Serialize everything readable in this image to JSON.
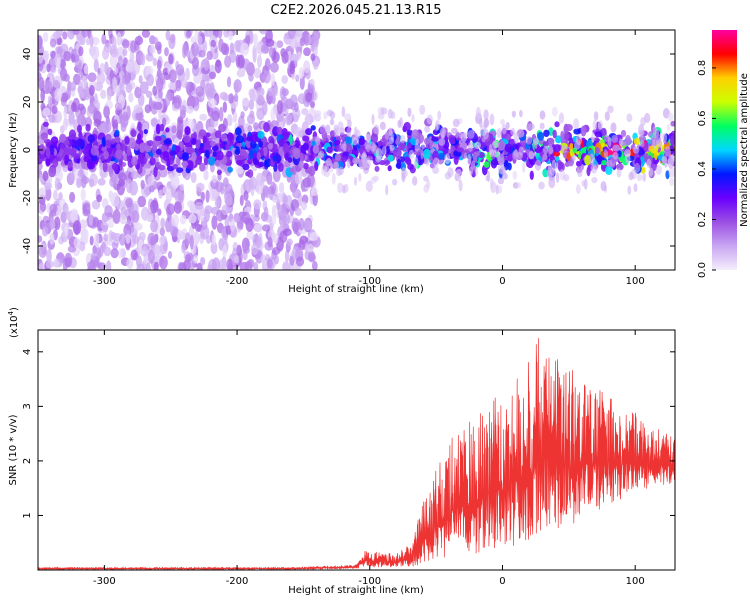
{
  "figure": {
    "title": "C2E2.2026.045.21.13.R15"
  },
  "chart_data": [
    {
      "type": "heatmap",
      "xlabel": "Height of straight line (km)",
      "ylabel": "Frequency (Hz)",
      "xlim": [
        -350,
        130
      ],
      "ylim": [
        -50,
        50
      ],
      "xticks": [
        -300,
        -200,
        -100,
        0,
        100
      ],
      "yticks": [
        -40,
        -20,
        0,
        20,
        40
      ],
      "xtick_labels": [
        "-300",
        "-200",
        "-100",
        "0",
        "100"
      ],
      "ytick_labels": [
        "-40",
        "-20",
        "0",
        "20",
        "40"
      ],
      "noise_region_x": [
        -350,
        -140
      ],
      "band_center_hz": 0,
      "band_halfwidth_hz": 5,
      "colorbar": {
        "label": "Normalized spectral amplitude",
        "range": [
          0,
          0.95
        ],
        "ticks": [
          0,
          0.2,
          0.4,
          0.6,
          0.8
        ],
        "tick_labels": [
          "0.0",
          "0.2",
          "0.4",
          "0.6",
          "0.8"
        ],
        "colors": [
          "#f4eefc",
          "#c9a6f2",
          "#9b4fe3",
          "#6a00ff",
          "#0018ff",
          "#00d8ff",
          "#00ff60",
          "#ccff00",
          "#ffd000",
          "#ff0000",
          "#ff00a0"
        ]
      }
    },
    {
      "type": "line",
      "color": "#ee3333",
      "xlabel": "Height of straight line (km)",
      "ylabel": "SNR (10 * v/v)",
      "scale_label": "(x10",
      "scale_exponent": "4",
      "scale_close": ")",
      "xlim": [
        -350,
        130
      ],
      "ylim": [
        0,
        4.4
      ],
      "xticks": [
        -300,
        -200,
        -100,
        0,
        100
      ],
      "yticks": [
        1,
        2,
        3,
        4
      ],
      "xtick_labels": [
        "-300",
        "-200",
        "-100",
        "0",
        "100"
      ],
      "ytick_labels": [
        "1",
        "2",
        "3",
        "4"
      ],
      "envelope": {
        "x": [
          -350,
          -160,
          -110,
          -105,
          -100,
          -80,
          -70,
          -60,
          -40,
          -20,
          0,
          20,
          30,
          40,
          60,
          80,
          100,
          115,
          130
        ],
        "upper": [
          0.05,
          0.05,
          0.1,
          0.35,
          0.35,
          0.3,
          0.5,
          1.3,
          2.4,
          2.9,
          3.3,
          3.9,
          4.4,
          4.0,
          3.5,
          3.2,
          2.9,
          2.6,
          2.5
        ],
        "lower": [
          0.01,
          0.01,
          0.02,
          0.05,
          0.05,
          0.05,
          0.05,
          0.1,
          0.2,
          0.3,
          0.4,
          0.5,
          0.6,
          0.7,
          0.9,
          1.2,
          1.4,
          1.5,
          1.6
        ]
      }
    }
  ]
}
